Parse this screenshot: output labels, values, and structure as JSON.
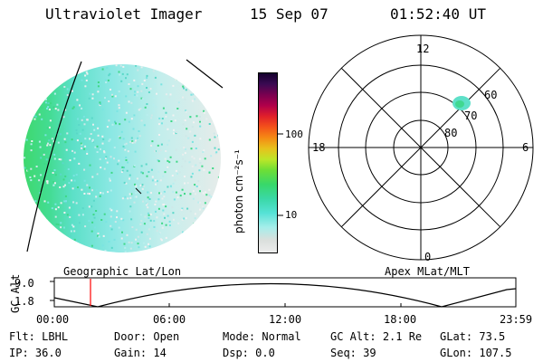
{
  "header": {
    "instrument": "Ultraviolet Imager",
    "date": "15 Sep 07",
    "time": "01:52:40 UT"
  },
  "colorbar": {
    "unit": "photon cm⁻²s⁻¹",
    "tick_labels": [
      "100",
      "10"
    ]
  },
  "polar_plot": {
    "mlt_labels": {
      "top": "12",
      "bottom": "0",
      "left": "18",
      "right": "6"
    },
    "lat_labels": [
      "60",
      "70",
      "80"
    ]
  },
  "altitude_plot": {
    "left_caption": "Geographic Lat/Lon",
    "right_caption": "Apex MLat/MLT",
    "axis_label": "GC Alt",
    "y_ticks": [
      "9.0",
      "1.8"
    ],
    "x_ticks": [
      "00:00",
      "06:00",
      "12:00",
      "18:00",
      "23:59"
    ]
  },
  "status": {
    "flt": {
      "label": "Flt:",
      "value": "LBHL"
    },
    "door": {
      "label": "Door:",
      "value": "Open"
    },
    "mode": {
      "label": "Mode:",
      "value": "Normal"
    },
    "gc_alt": {
      "label": "GC Alt:",
      "value": "2.1 Re"
    },
    "glat": {
      "label": "GLat:",
      "value": "73.5"
    },
    "ip": {
      "label": "IP:",
      "value": "36.0"
    },
    "gain": {
      "label": "Gain:",
      "value": "14"
    },
    "dsp": {
      "label": "Dsp:",
      "value": "0.0"
    },
    "seq": {
      "label": "Seq:",
      "value": "39"
    },
    "glon": {
      "label": "GLon:",
      "value": "107.5"
    }
  }
}
